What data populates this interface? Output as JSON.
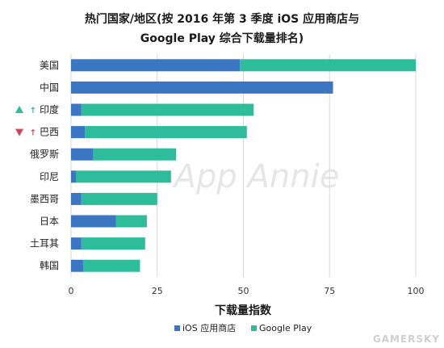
{
  "title": {
    "line1": "热门国家/地区(按 2016 年第 3 季度 iOS 应用商店与",
    "line2": "Google Play 综合下载量排名)"
  },
  "watermark": "App Annie",
  "site_watermark": "GAMERSKY",
  "colors": {
    "ios": "#3a76c2",
    "google_play": "#2ebd9a",
    "up_arrow": "#2ebd9a",
    "down_arrow": "#d2465a"
  },
  "chart_data": {
    "type": "bar",
    "orientation": "horizontal",
    "stacked": true,
    "title": "热门国家/地区(按 2016 年第 3 季度 iOS 应用商店与 Google Play 综合下载量排名)",
    "xlabel": "下载量指数",
    "ylabel": "",
    "xlim": [
      0,
      100
    ],
    "xticks": [
      0,
      25,
      50,
      75,
      100
    ],
    "grid": "vertical",
    "legend_position": "bottom",
    "categories": [
      "美国",
      "中国",
      "印度",
      "巴西",
      "俄罗斯",
      "印尼",
      "墨西哥",
      "日本",
      "土耳其",
      "韩国"
    ],
    "rank_change": [
      null,
      null,
      "up",
      "down",
      null,
      null,
      null,
      null,
      null,
      null
    ],
    "series": [
      {
        "name": "iOS 应用商店",
        "values": [
          49,
          76,
          3,
          4,
          6.5,
          1.5,
          3,
          13,
          3,
          3.5
        ]
      },
      {
        "name": "Google Play",
        "values": [
          51,
          0,
          50,
          47,
          24,
          27.5,
          22,
          9,
          18.5,
          16.5
        ]
      }
    ]
  }
}
